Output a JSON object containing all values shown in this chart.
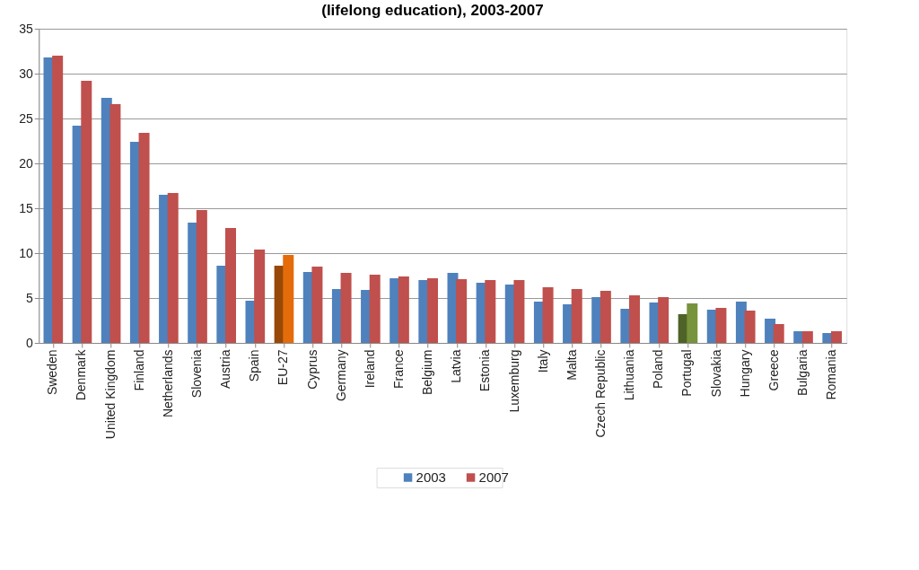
{
  "chart_data": {
    "type": "bar",
    "title": "(lifelong education), 2003-2007",
    "categories": [
      "Sweden",
      "Denmark",
      "United Kingdom",
      "Finland",
      "Netherlands",
      "Slovenia",
      "Austria",
      "Spain",
      "EU-27",
      "Cyprus",
      "Germany",
      "Ireland",
      "France",
      "Belgium",
      "Latvia",
      "Estonia",
      "Luxemburg",
      "Italy",
      "Malta",
      "Czech Republic",
      "Lithuania",
      "Poland",
      "Portugal",
      "Slovakia",
      "Hungary",
      "Greece",
      "Bulgaria",
      "Romania"
    ],
    "series": [
      {
        "name": "2003",
        "color": "#4f81bd",
        "values": [
          31.8,
          24.2,
          27.3,
          22.4,
          16.5,
          13.4,
          8.6,
          4.7,
          8.6,
          7.9,
          6.0,
          5.9,
          7.2,
          7.0,
          7.8,
          6.7,
          6.5,
          4.6,
          4.3,
          5.1,
          3.8,
          4.5,
          3.2,
          3.7,
          4.6,
          2.7,
          1.3,
          1.1
        ],
        "colors": [
          "#4f81bd",
          "#4f81bd",
          "#4f81bd",
          "#4f81bd",
          "#4f81bd",
          "#4f81bd",
          "#4f81bd",
          "#4f81bd",
          "#984807",
          "#4f81bd",
          "#4f81bd",
          "#4f81bd",
          "#4f81bd",
          "#4f81bd",
          "#4f81bd",
          "#4f81bd",
          "#4f81bd",
          "#4f81bd",
          "#4f81bd",
          "#4f81bd",
          "#4f81bd",
          "#4f81bd",
          "#4f6228",
          "#4f81bd",
          "#4f81bd",
          "#4f81bd",
          "#4f81bd",
          "#4f81bd"
        ]
      },
      {
        "name": "2007",
        "color": "#c0504d",
        "values": [
          32.0,
          29.2,
          26.6,
          23.4,
          16.7,
          14.8,
          12.8,
          10.4,
          9.8,
          8.5,
          7.8,
          7.6,
          7.4,
          7.2,
          7.1,
          7.0,
          7.0,
          6.2,
          6.0,
          5.8,
          5.3,
          5.1,
          4.4,
          3.9,
          3.6,
          2.1,
          1.3,
          1.3
        ],
        "colors": [
          "#c0504d",
          "#c0504d",
          "#c0504d",
          "#c0504d",
          "#c0504d",
          "#c0504d",
          "#c0504d",
          "#c0504d",
          "#e46c0a",
          "#c0504d",
          "#c0504d",
          "#c0504d",
          "#c0504d",
          "#c0504d",
          "#c0504d",
          "#c0504d",
          "#c0504d",
          "#c0504d",
          "#c0504d",
          "#c0504d",
          "#c0504d",
          "#c0504d",
          "#77933c",
          "#c0504d",
          "#c0504d",
          "#c0504d",
          "#c0504d",
          "#c0504d"
        ]
      }
    ],
    "ylim": [
      0,
      35
    ],
    "yticks": [
      0,
      5,
      10,
      15,
      20,
      25,
      30,
      35
    ],
    "grid": "y",
    "legend": "bottom"
  }
}
